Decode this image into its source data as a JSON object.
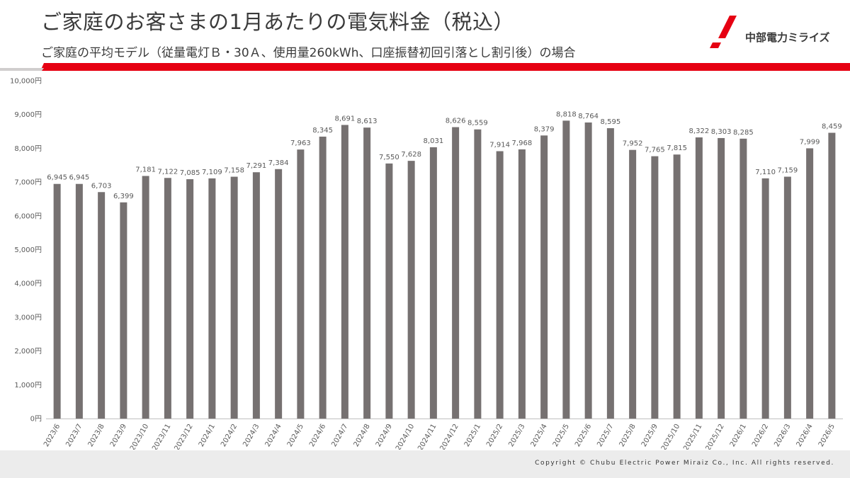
{
  "header": {
    "title": "ご家庭のお客さまの1月あたりの電気料金（税込）",
    "subtitle": "ご家庭の平均モデル（従量電灯Ｂ・30Ａ、使用量260kWh、口座振替初回引落とし割引後）の場合",
    "logo_text": "中部電力ミライズ"
  },
  "footer": {
    "copyright": "Copyright © Chubu Electric Power Miraiz Co., Inc. All rights reserved."
  },
  "colors": {
    "accent": "#e60012",
    "bar": "#767171",
    "text": "#3a3a3a",
    "footer_bg": "#ececec"
  },
  "chart_data": {
    "type": "bar",
    "title": "ご家庭のお客さまの1月あたりの電気料金（税込）",
    "xlabel": "",
    "ylabel": "",
    "ylim": [
      0,
      10000
    ],
    "grid": false,
    "y_ticks": [
      "0円",
      "1,000円",
      "2,000円",
      "3,000円",
      "4,000円",
      "5,000円",
      "6,000円",
      "7,000円",
      "8,000円",
      "9,000円",
      "10,000円"
    ],
    "categories": [
      "2023/6",
      "2023/7",
      "2023/8",
      "2023/9",
      "2023/10",
      "2023/11",
      "2023/12",
      "2024/1",
      "2024/2",
      "2024/3",
      "2024/4",
      "2024/5",
      "2024/6",
      "2024/7",
      "2024/8",
      "2024/9",
      "2024/10",
      "2024/11",
      "2024/12",
      "2025/1",
      "2025/2",
      "2025/3",
      "2025/4",
      "2025/5",
      "2025/6",
      "2025/7",
      "2025/8",
      "2025/9",
      "2025/10",
      "2025/11",
      "2025/12",
      "2026/1",
      "2026/2",
      "2026/3",
      "2026/4",
      "2026/5"
    ],
    "values": [
      6945,
      6945,
      6703,
      6399,
      7181,
      7122,
      7085,
      7109,
      7158,
      7291,
      7384,
      7963,
      8345,
      8691,
      8613,
      7550,
      7628,
      8031,
      8626,
      8559,
      7914,
      7968,
      8379,
      8818,
      8764,
      8595,
      7952,
      7765,
      7815,
      8322,
      8303,
      8285,
      7110,
      7159,
      7999,
      8459
    ],
    "labels": [
      "6,945",
      "6,945",
      "6,703",
      "6,399",
      "7,181",
      "7,122",
      "7,085",
      "7,109",
      "7,158",
      "7,291",
      "7,384",
      "7,963",
      "8,345",
      "8,691",
      "8,613",
      "7,550",
      "7,628",
      "8,031",
      "8,626",
      "8,559",
      "7,914",
      "7,968",
      "8,379",
      "8,818",
      "8,764",
      "8,595",
      "7,952",
      "7,765",
      "7,815",
      "8,322",
      "8,303",
      "8,285",
      "7,110",
      "7,159",
      "7,999",
      "8,459"
    ]
  }
}
